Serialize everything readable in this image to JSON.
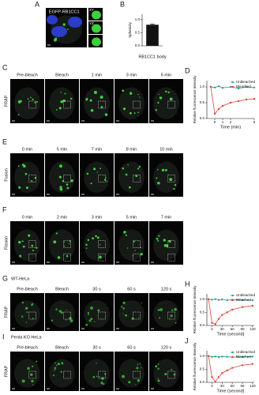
{
  "figure": {
    "A": {
      "label": "A",
      "image_label": "EGFP-RB1CC1",
      "insets": [
        "XY",
        "YZ"
      ]
    },
    "B": {
      "label": "B"
    },
    "C": {
      "label": "C",
      "row_label": "FRAP",
      "columns": [
        "Pre-bleach",
        "Bleach",
        "1 min",
        "3 min",
        "5 min"
      ]
    },
    "D": {
      "label": "D"
    },
    "E": {
      "label": "E",
      "row_label": "Fusion",
      "columns": [
        "0 min",
        "5 min",
        "7 min",
        "8 min",
        "10 min"
      ]
    },
    "F": {
      "label": "F",
      "row_label": "Fission",
      "columns": [
        "0 min",
        "2 min",
        "3 min",
        "5 min",
        "7 min"
      ]
    },
    "G": {
      "label": "G",
      "cell_line": "WT-HeLa",
      "row_label": "FRAP",
      "columns": [
        "Pre-bleach",
        "Bleach",
        "30 s",
        "60 s",
        "120 s"
      ]
    },
    "H": {
      "label": "H"
    },
    "I": {
      "label": "I",
      "cell_line": "Penta KO HeLa",
      "row_label": "FRAP",
      "columns": [
        "Pre-bleach",
        "Bleach",
        "30 s",
        "60 s",
        "120 s"
      ]
    },
    "J": {
      "label": "J"
    }
  },
  "chart_data": [
    {
      "type": "bar",
      "categories": [
        "RB1CC1 body"
      ],
      "values": [
        0.8
      ],
      "errors": [
        0.03
      ],
      "color": "#111111",
      "ylabel": "Sphericity",
      "ylim": [
        0,
        1.2
      ],
      "yticks": [
        {
          "value": 0,
          "label": "0.0"
        },
        0.5,
        {
          "value": 1,
          "label": "1.0"
        }
      ]
    },
    {
      "type": "line",
      "x": [
        -0.5,
        0,
        0.5,
        1,
        2,
        3,
        4,
        5
      ],
      "series": [
        {
          "name": "Unbleached",
          "color": "#2e9e8f",
          "values": [
            1.0,
            0.98,
            1.02,
            0.97,
            1.0,
            0.95,
            1.0,
            0.98
          ]
        },
        {
          "name": "Bleached",
          "color": "#e0443a",
          "values": [
            1.0,
            0.15,
            0.3,
            0.4,
            0.5,
            0.55,
            0.6,
            0.62
          ]
        }
      ],
      "xlabel": "Time (min)",
      "ylabel": "Relative fluorescence intensity",
      "legend": "top-right",
      "xlim": [
        -1,
        5
      ],
      "xticks": [
        0,
        1,
        2,
        5
      ],
      "ylim": [
        0,
        1.2
      ],
      "yticks": [
        {
          "value": 0,
          "label": "0.0"
        },
        0.5,
        {
          "value": 1,
          "label": "1.0"
        }
      ]
    },
    {
      "type": "line",
      "x": [
        -10,
        0,
        10,
        20,
        30,
        45,
        60,
        90,
        120
      ],
      "series": [
        {
          "name": "Unbleached",
          "color": "#2e9e8f",
          "values": [
            1.0,
            0.98,
            1.0,
            0.97,
            0.99,
            0.96,
            0.98,
            0.97,
            0.96
          ]
        },
        {
          "name": "Bleached",
          "color": "#e0443a",
          "values": [
            1.0,
            0.1,
            0.05,
            0.25,
            0.4,
            0.5,
            0.6,
            0.7,
            0.75
          ]
        }
      ],
      "xlabel": "Time (second)",
      "ylabel": "Relative fluorescence intensity",
      "legend": "top-right",
      "xlim": [
        -15,
        125
      ],
      "xticks": [
        0,
        30,
        60,
        90,
        120
      ],
      "ylim": [
        0,
        1.2
      ],
      "yticks": [
        {
          "value": 0,
          "label": "0.0"
        },
        0.5,
        {
          "value": 1,
          "label": "1.0"
        }
      ]
    },
    {
      "type": "line",
      "x": [
        -10,
        0,
        10,
        20,
        30,
        45,
        60,
        90,
        120
      ],
      "series": [
        {
          "name": "Unbleached",
          "color": "#2e9e8f",
          "values": [
            1.0,
            0.97,
            0.98,
            0.96,
            0.98,
            0.97,
            0.96,
            0.97,
            0.98
          ]
        },
        {
          "name": "Bleached",
          "color": "#e0443a",
          "values": [
            1.0,
            0.2,
            0.02,
            0.2,
            0.35,
            0.45,
            0.55,
            0.65,
            0.7
          ]
        }
      ],
      "xlabel": "Time (second)",
      "ylabel": "Relative fluorescence intensity",
      "legend": "top-right",
      "xlim": [
        -15,
        125
      ],
      "xticks": [
        0,
        30,
        60,
        90,
        120
      ],
      "ylim": [
        0,
        1.2
      ],
      "yticks": [
        {
          "value": 0,
          "label": "0.0"
        },
        0.5,
        {
          "value": 1,
          "label": "1.0"
        }
      ]
    }
  ]
}
